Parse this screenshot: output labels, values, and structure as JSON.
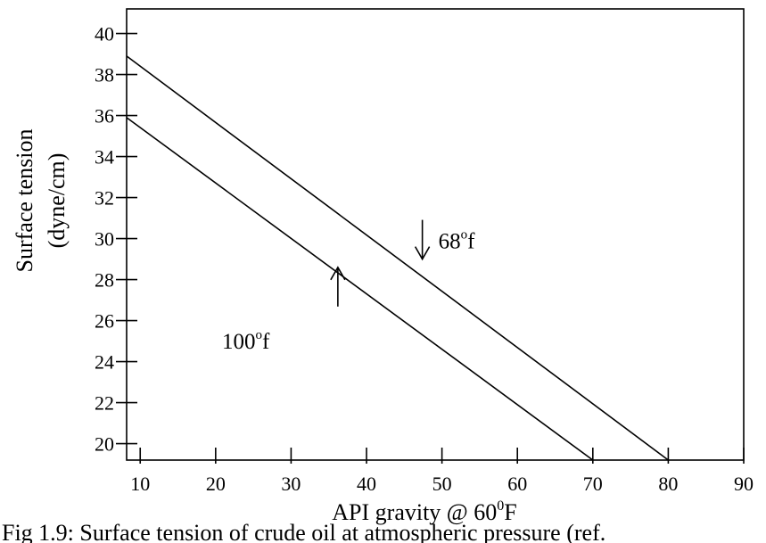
{
  "chart_data": {
    "type": "line",
    "title": "",
    "xlabel": "API gravity @ 60",
    "xlabel_sup": "0",
    "xlabel_tail": "F",
    "ylabel": "Surface tension",
    "ylabel_units": "(dyne/cm)",
    "xlim": [
      8.2,
      90
    ],
    "ylim": [
      19.2,
      41.2
    ],
    "x_ticks": [
      10,
      20,
      30,
      40,
      50,
      60,
      70,
      80,
      90
    ],
    "x_tick_labels": [
      "10",
      "20",
      "30",
      "40",
      "50",
      "60",
      "70",
      "80",
      "90"
    ],
    "y_ticks": [
      20,
      22,
      24,
      26,
      28,
      30,
      32,
      34,
      36,
      38,
      40
    ],
    "y_tick_labels": [
      "20",
      "22",
      "24",
      "26",
      "28",
      "30",
      "32",
      "34",
      "36",
      "38",
      "40"
    ],
    "grid": false,
    "series": [
      {
        "name": "68°f",
        "x": [
          8.2,
          80
        ],
        "y": [
          38.9,
          19.2
        ]
      },
      {
        "name": "100°f",
        "x": [
          8.2,
          70
        ],
        "y": [
          35.9,
          19.2
        ]
      }
    ],
    "annotations": [
      {
        "label_main": "68",
        "label_sup": "o",
        "label_tail": "f",
        "arrow_at": [
          47.4,
          29.0
        ],
        "arrow_dir": "down"
      },
      {
        "label_main": "100",
        "label_sup": "o",
        "label_tail": "f",
        "arrow_at": [
          36.2,
          28.6
        ],
        "arrow_dir": "up"
      }
    ],
    "caption": "Fig 1.9: Surface tension of crude oil at atmospheric pressure (ref."
  }
}
